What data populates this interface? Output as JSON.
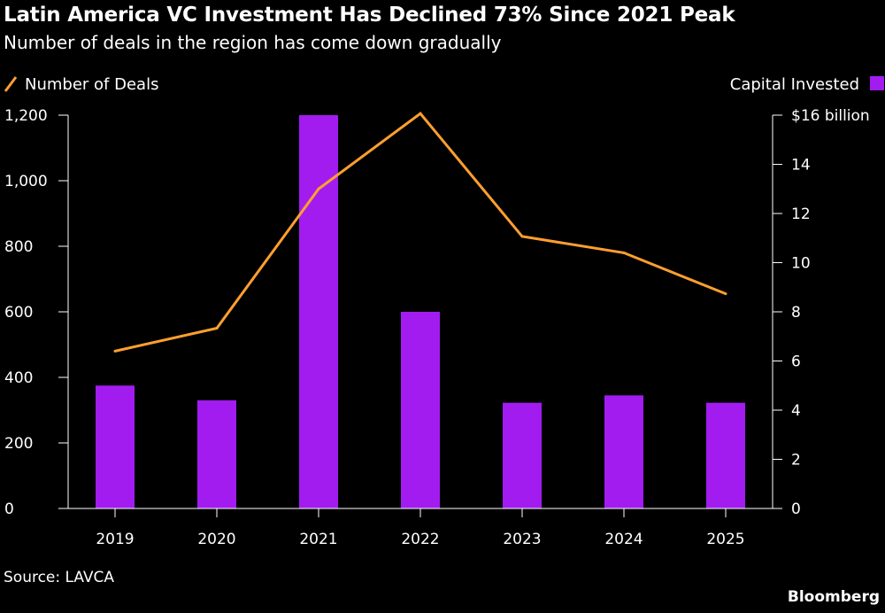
{
  "chart_data": {
    "type": "bar+line",
    "title": "Latin America VC Investment Has Declined 73% Since 2021 Peak",
    "subtitle": "Number of deals in the region has come down gradually",
    "categories": [
      "2019",
      "2020",
      "2021",
      "2022",
      "2023",
      "2024",
      "2025"
    ],
    "series": [
      {
        "name": "Capital Invested",
        "type": "bar",
        "axis": "right",
        "color": "#a21cf0",
        "values": [
          5.0,
          4.4,
          16.0,
          8.0,
          4.3,
          4.6,
          4.3
        ]
      },
      {
        "name": "Number of Deals",
        "type": "line",
        "axis": "left",
        "color": "#ff9f2e",
        "values": [
          480,
          550,
          975,
          1205,
          830,
          780,
          655
        ]
      }
    ],
    "y_left": {
      "range": [
        0,
        1200
      ],
      "ticks": [
        0,
        200,
        400,
        600,
        800,
        1000,
        1200
      ],
      "tick_labels": [
        "0",
        "200",
        "400",
        "600",
        "800",
        "1,000",
        "1,200"
      ]
    },
    "y_right": {
      "range": [
        0,
        16
      ],
      "ticks": [
        0,
        2,
        4,
        6,
        8,
        10,
        12,
        14,
        16
      ],
      "tick_labels": [
        "0",
        "2",
        "4",
        "6",
        "8",
        "10",
        "12",
        "14",
        "$16 billion"
      ]
    },
    "legend": {
      "left": "Number of Deals",
      "right": "Capital Invested"
    },
    "grid": false
  },
  "footer": {
    "source": "Source: LAVCA",
    "brand": "Bloomberg"
  }
}
